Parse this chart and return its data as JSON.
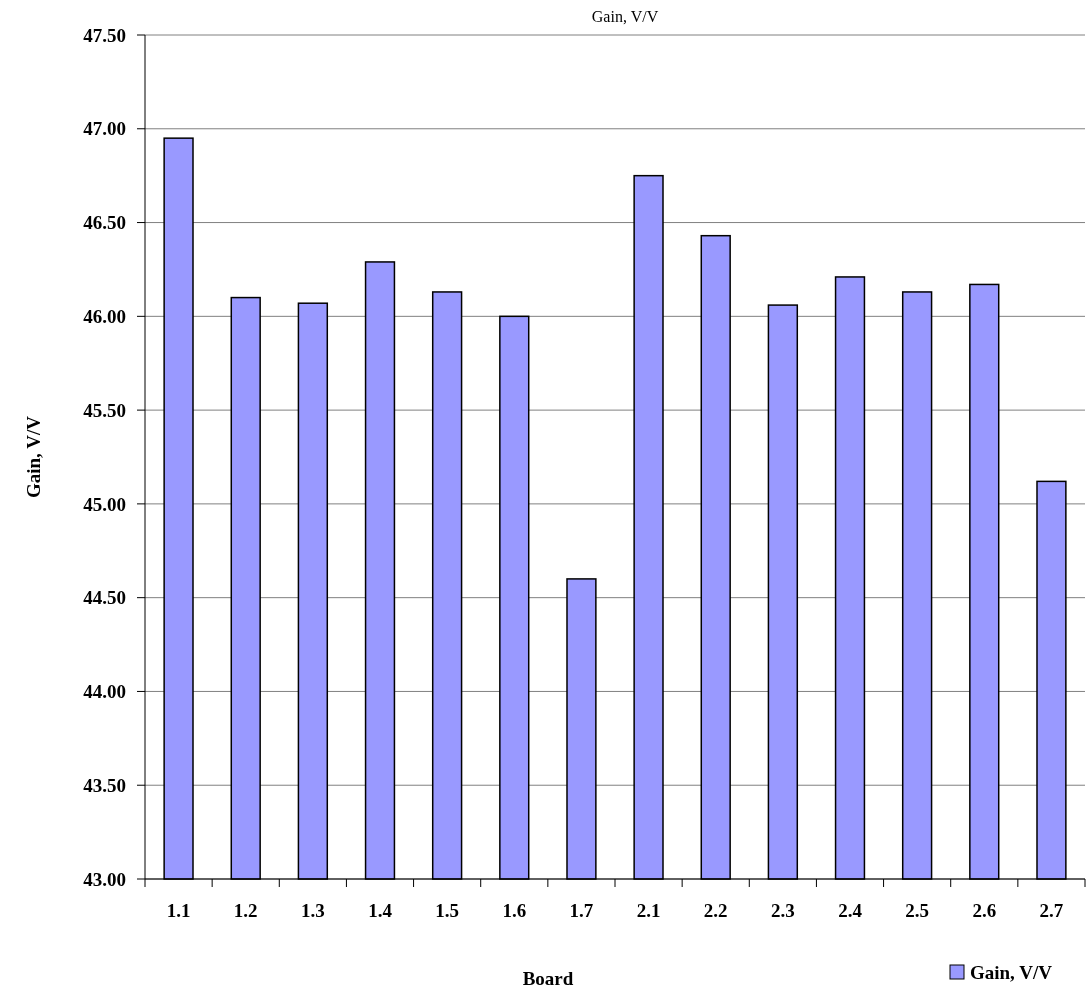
{
  "chart_data": {
    "type": "bar",
    "title": "Gain, V/V",
    "xlabel": "Board",
    "ylabel": "Gain, V/V",
    "categories": [
      "1.1",
      "1.2",
      "1.3",
      "1.4",
      "1.5",
      "1.6",
      "1.7",
      "2.1",
      "2.2",
      "2.3",
      "2.4",
      "2.5",
      "2.6",
      "2.7"
    ],
    "series": [
      {
        "name": "Gain, V/V",
        "color": "#9999ff",
        "values": [
          46.95,
          46.1,
          46.07,
          46.29,
          46.13,
          46.0,
          44.6,
          46.75,
          46.43,
          46.06,
          46.21,
          46.13,
          46.17,
          45.12
        ]
      }
    ],
    "ylim": [
      43,
      47.5
    ],
    "yticks": [
      {
        "value": 43,
        "label": "43.00"
      },
      {
        "value": 43.5,
        "label": "43.50"
      },
      {
        "value": 44,
        "label": "44.00"
      },
      {
        "value": 44.5,
        "label": "44.50"
      },
      {
        "value": 45,
        "label": "45.00"
      },
      {
        "value": 45.5,
        "label": "45.50"
      },
      {
        "value": 46,
        "label": "46.00"
      },
      {
        "value": 46.5,
        "label": "46.50"
      },
      {
        "value": 47,
        "label": "47.00"
      },
      {
        "value": 47.5,
        "label": "47.50"
      }
    ],
    "grid": "y",
    "legend": "bottom right"
  }
}
